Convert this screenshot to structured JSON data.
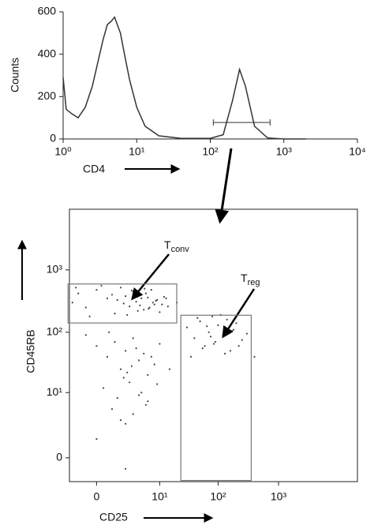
{
  "chart_data": [
    {
      "type": "line",
      "ylabel": "Counts",
      "xlabel": "CD4",
      "xscale": "log",
      "xlim": [
        1,
        10000
      ],
      "ylim": [
        0,
        600
      ],
      "xticks": [
        {
          "value": 1,
          "label": "10⁰"
        },
        {
          "value": 10,
          "label": "10¹"
        },
        {
          "value": 100,
          "label": "10²"
        },
        {
          "value": 1000,
          "label": "10³"
        },
        {
          "value": 10000,
          "label": "10⁴"
        }
      ],
      "yticks": [
        0,
        200,
        400,
        600
      ],
      "x": [
        1,
        1.1,
        1.3,
        1.6,
        2,
        2.5,
        3,
        3.5,
        4,
        4.5,
        5,
        6,
        7,
        8,
        10,
        13,
        20,
        40,
        100,
        150,
        200,
        250,
        300,
        400,
        600,
        1000,
        2000
      ],
      "values": [
        290,
        140,
        120,
        100,
        150,
        250,
        370,
        470,
        540,
        555,
        575,
        500,
        380,
        280,
        150,
        60,
        15,
        3,
        3,
        20,
        180,
        328,
        250,
        60,
        5,
        0,
        0
      ],
      "color": "#333333",
      "gate": {
        "x": [
          110,
          650
        ],
        "y": 78
      }
    },
    {
      "type": "scatter",
      "xlabel": "CD25",
      "ylabel": "CD45RB",
      "xscale": "biexponential",
      "yscale": "biexponential",
      "xlim": [
        -1.8,
        20000
      ],
      "ylim": [
        -1.4,
        9300
      ],
      "xticks": [
        0,
        {
          "value": 10,
          "label": "10¹"
        },
        {
          "value": 100,
          "label": "10²"
        },
        {
          "value": 1000,
          "label": "10³"
        }
      ],
      "yticks": [
        0,
        {
          "value": 10,
          "label": "10¹"
        },
        {
          "value": 100,
          "label": "10²"
        },
        {
          "value": 1000,
          "label": "10³"
        }
      ],
      "x": [
        -1.5,
        -1,
        -0.5,
        0,
        0.5,
        1,
        1.5,
        2,
        2.5,
        3,
        3.5,
        4,
        5,
        6,
        7,
        8,
        9,
        10,
        12,
        14,
        -1.2,
        -0.3,
        0.8,
        1.8,
        2.8,
        3.8,
        4.5,
        5.5,
        6.5,
        7.5,
        0.2,
        1.2,
        2.2,
        3.2,
        4.2,
        5.2,
        6.2,
        8.5,
        11,
        13,
        -0.5,
        0,
        0.5,
        1,
        1.5,
        2,
        2.5,
        3,
        4,
        5,
        6,
        8,
        10,
        0.3,
        1.2,
        2.2,
        3.5,
        4.5,
        0.8,
        1.8,
        2.8,
        5.5,
        7,
        9,
        1.5,
        3,
        4,
        2,
        6,
        0.6,
        30,
        40,
        50,
        60,
        70,
        80,
        90,
        100,
        120,
        140,
        160,
        180,
        200,
        250,
        300,
        35,
        45,
        55,
        65,
        75,
        85,
        110,
        130,
        170,
        220,
        20,
        400,
        0,
        2,
        15
      ],
      "y": [
        300,
        420,
        250,
        480,
        350,
        200,
        520,
        380,
        260,
        450,
        310,
        400,
        230,
        360,
        480,
        280,
        330,
        210,
        370,
        260,
        520,
        180,
        400,
        290,
        470,
        220,
        350,
        420,
        250,
        300,
        560,
        330,
        190,
        410,
        270,
        500,
        240,
        320,
        280,
        350,
        90,
        60,
        40,
        70,
        25,
        50,
        15,
        80,
        35,
        45,
        20,
        30,
        65,
        12,
        8,
        22,
        55,
        10,
        5,
        18,
        28,
        6,
        40,
        14,
        3,
        4,
        9,
        2.5,
        7,
        100,
        120,
        80,
        150,
        60,
        100,
        180,
        70,
        130,
        90,
        160,
        50,
        110,
        140,
        75,
        95,
        40,
        170,
        55,
        125,
        85,
        65,
        190,
        45,
        105,
        60,
        300,
        40,
        1,
        -0.5,
        25
      ],
      "color": "#444444",
      "gates": [
        {
          "x": [
            -1.95,
            20
          ],
          "y": [
            141,
            595
          ]
        },
        {
          "x": [
            23.5,
            354
          ],
          "y": [
            -1.3,
            188
          ]
        }
      ],
      "annotations": [
        {
          "text": "T",
          "subscript": "conv"
        },
        {
          "text": "T",
          "subscript": "reg"
        }
      ]
    }
  ]
}
